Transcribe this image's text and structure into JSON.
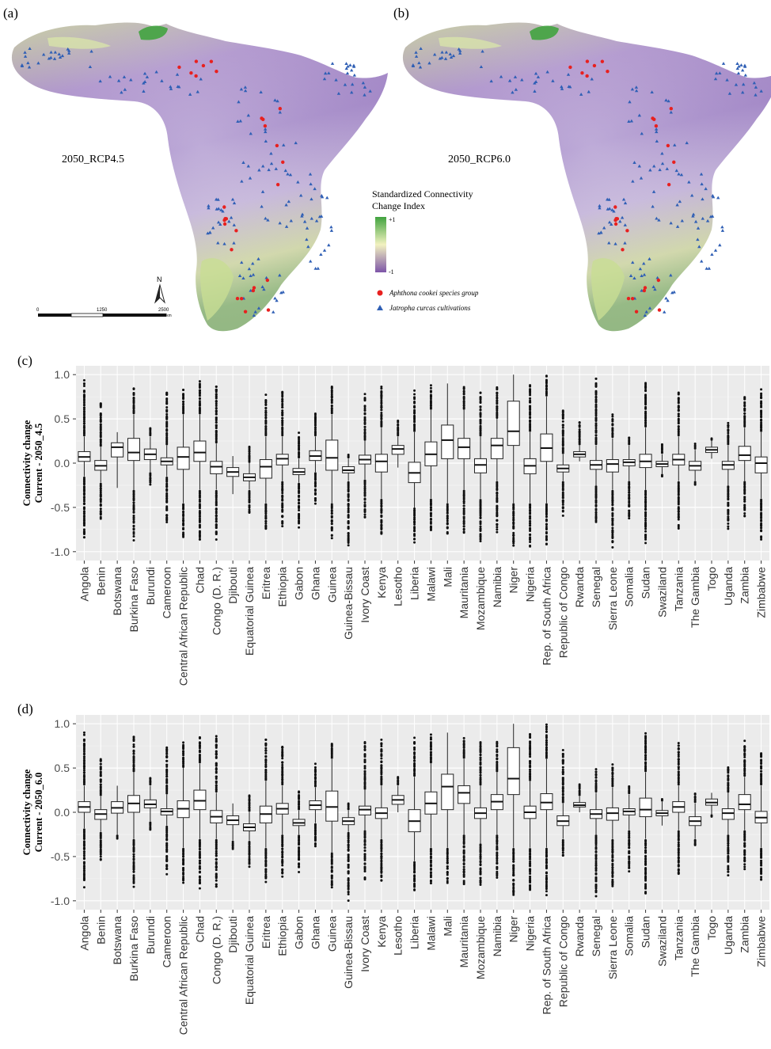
{
  "panels": {
    "a": {
      "tag": "(a)",
      "scenario": "2050_RCP4.5"
    },
    "b": {
      "tag": "(b)",
      "scenario": "2050_RCP6.0"
    },
    "c": {
      "tag": "(c)"
    },
    "d": {
      "tag": "(d)"
    }
  },
  "map_legend": {
    "title_line1": "Standardized Connectivity",
    "title_line2": "Change Index",
    "max_label": "+1",
    "min_label": "-1",
    "color_high": "#41a33f",
    "color_mid": "#f2f2c0",
    "color_low": "#7d55a8",
    "point_species": "Aphthona cookei species group",
    "point_crop": "Jatropha curcas cultivations",
    "point_species_color": "#e8201f",
    "point_crop_color": "#2f5fb5"
  },
  "scalebar": {
    "labels": [
      "0",
      "1250",
      "2500"
    ],
    "unit": "km",
    "north": "N"
  },
  "chart_data": [
    {
      "type": "box",
      "panel": "c",
      "ylabel_line1": "Connectivity change",
      "ylabel_line2": "Current - 2050_4.5",
      "ylim": [
        -1.0,
        1.0
      ],
      "yticks": [
        "1.0",
        "0.5",
        "0.0",
        "-0.5",
        "-1.0"
      ],
      "ytick_values": [
        1.0,
        0.5,
        0.0,
        -0.5,
        -1.0
      ],
      "grid": true,
      "panel_background": "#ebebeb",
      "categories": [
        "Angola",
        "Benin",
        "Botswana",
        "Burkina Faso",
        "Burundi",
        "Cameroon",
        "Central African Republic",
        "Chad",
        "Congo (D. R.)",
        "Djibouti",
        "Equatorial Guinea",
        "Eritrea",
        "Ethiopia",
        "Gabon",
        "Ghana",
        "Guinea",
        "Guinea-Bissau",
        "Ivory Coast",
        "Kenya",
        "Lesotho",
        "Liberia",
        "Malawi",
        "Mali",
        "Mauritania",
        "Mozambique",
        "Namibia",
        "Niger",
        "Nigeria",
        "Rep. of South Africa",
        "Republic of Congo",
        "Rwanda",
        "Senegal",
        "Sierra Leone",
        "Somalia",
        "Sudan",
        "Swaziland",
        "Tanzania",
        "The Gambia",
        "Togo",
        "Uganda",
        "Zambia",
        "Zimbabwe"
      ],
      "boxes": [
        {
          "q1": 0.02,
          "median": 0.07,
          "q3": 0.13,
          "lw": -0.15,
          "uw": 0.3,
          "ymin": -0.9,
          "ymax": 0.95
        },
        {
          "q1": -0.08,
          "median": -0.03,
          "q3": 0.03,
          "lw": -0.22,
          "uw": 0.18,
          "ymin": -0.65,
          "ymax": 0.72
        },
        {
          "q1": 0.07,
          "median": 0.18,
          "q3": 0.23,
          "lw": -0.28,
          "uw": 0.35,
          "ymin": -0.28,
          "ymax": 0.35
        },
        {
          "q1": 0.03,
          "median": 0.12,
          "q3": 0.28,
          "lw": -0.3,
          "uw": 0.55,
          "ymin": -0.88,
          "ymax": 0.88
        },
        {
          "q1": 0.04,
          "median": 0.1,
          "q3": 0.16,
          "lw": -0.1,
          "uw": 0.3,
          "ymin": -0.25,
          "ymax": 0.4
        },
        {
          "q1": -0.02,
          "median": 0.02,
          "q3": 0.06,
          "lw": -0.15,
          "uw": 0.2,
          "ymin": -0.72,
          "ymax": 0.85
        },
        {
          "q1": -0.07,
          "median": 0.07,
          "q3": 0.18,
          "lw": -0.45,
          "uw": 0.55,
          "ymin": -0.88,
          "ymax": 0.85
        },
        {
          "q1": 0.02,
          "median": 0.12,
          "q3": 0.25,
          "lw": -0.3,
          "uw": 0.55,
          "ymin": -0.9,
          "ymax": 0.95
        },
        {
          "q1": -0.12,
          "median": -0.04,
          "q3": 0.02,
          "lw": -0.3,
          "uw": 0.22,
          "ymin": -0.88,
          "ymax": 0.95
        },
        {
          "q1": -0.15,
          "median": -0.1,
          "q3": -0.05,
          "lw": -0.35,
          "uw": 0.08,
          "ymin": -0.35,
          "ymax": 0.08
        },
        {
          "q1": -0.2,
          "median": -0.16,
          "q3": -0.12,
          "lw": -0.3,
          "uw": 0.0,
          "ymin": -0.58,
          "ymax": 0.2
        },
        {
          "q1": -0.17,
          "median": -0.04,
          "q3": 0.04,
          "lw": -0.45,
          "uw": 0.3,
          "ymin": -0.78,
          "ymax": 0.78
        },
        {
          "q1": -0.02,
          "median": 0.05,
          "q3": 0.1,
          "lw": -0.2,
          "uw": 0.3,
          "ymin": -0.75,
          "ymax": 0.85
        },
        {
          "q1": -0.13,
          "median": -0.1,
          "q3": -0.06,
          "lw": -0.22,
          "uw": 0.05,
          "ymin": -0.75,
          "ymax": 0.35
        },
        {
          "q1": 0.03,
          "median": 0.08,
          "q3": 0.14,
          "lw": -0.1,
          "uw": 0.3,
          "ymin": -0.48,
          "ymax": 0.58
        },
        {
          "q1": -0.08,
          "median": 0.06,
          "q3": 0.26,
          "lw": -0.45,
          "uw": 0.55,
          "ymin": -0.85,
          "ymax": 0.9
        },
        {
          "q1": -0.11,
          "median": -0.08,
          "q3": -0.04,
          "lw": -0.2,
          "uw": 0.05,
          "ymin": -1.0,
          "ymax": 0.1
        },
        {
          "q1": -0.01,
          "median": 0.04,
          "q3": 0.09,
          "lw": -0.18,
          "uw": 0.25,
          "ymin": -0.65,
          "ymax": 0.8
        },
        {
          "q1": -0.1,
          "median": 0.02,
          "q3": 0.1,
          "lw": -0.4,
          "uw": 0.4,
          "ymin": -0.85,
          "ymax": 0.9
        },
        {
          "q1": 0.1,
          "median": 0.16,
          "q3": 0.2,
          "lw": -0.05,
          "uw": 0.3,
          "ymin": -0.05,
          "ymax": 0.48
        },
        {
          "q1": -0.22,
          "median": -0.11,
          "q3": 0.01,
          "lw": -0.5,
          "uw": 0.35,
          "ymin": -0.92,
          "ymax": 0.82
        },
        {
          "q1": -0.03,
          "median": 0.1,
          "q3": 0.24,
          "lw": -0.4,
          "uw": 0.6,
          "ymin": -0.8,
          "ymax": 0.88
        },
        {
          "q1": 0.05,
          "median": 0.26,
          "q3": 0.43,
          "lw": -0.45,
          "uw": 0.9,
          "ymin": -0.82,
          "ymax": 0.9
        },
        {
          "q1": 0.05,
          "median": 0.18,
          "q3": 0.28,
          "lw": -0.3,
          "uw": 0.6,
          "ymin": -0.82,
          "ymax": 0.88
        },
        {
          "q1": -0.11,
          "median": -0.02,
          "q3": 0.05,
          "lw": -0.4,
          "uw": 0.3,
          "ymin": -0.92,
          "ymax": 0.82
        },
        {
          "q1": 0.05,
          "median": 0.2,
          "q3": 0.28,
          "lw": -0.2,
          "uw": 0.5,
          "ymin": -0.8,
          "ymax": 0.88
        },
        {
          "q1": 0.2,
          "median": 0.36,
          "q3": 0.7,
          "lw": -0.45,
          "uw": 1.0,
          "ymin": -0.98,
          "ymax": 1.0
        },
        {
          "q1": -0.12,
          "median": -0.03,
          "q3": 0.05,
          "lw": -0.45,
          "uw": 0.35,
          "ymin": -0.95,
          "ymax": 0.92
        },
        {
          "q1": 0.02,
          "median": 0.17,
          "q3": 0.33,
          "lw": -0.45,
          "uw": 0.75,
          "ymin": -0.95,
          "ymax": 1.0
        },
        {
          "q1": -0.1,
          "median": -0.06,
          "q3": -0.02,
          "lw": -0.2,
          "uw": 0.1,
          "ymin": -0.6,
          "ymax": 0.65
        },
        {
          "q1": 0.07,
          "median": 0.1,
          "q3": 0.13,
          "lw": 0.02,
          "uw": 0.2,
          "ymin": 0.02,
          "ymax": 0.48
        },
        {
          "q1": -0.07,
          "median": -0.02,
          "q3": 0.03,
          "lw": -0.25,
          "uw": 0.2,
          "ymin": -0.7,
          "ymax": 1.0
        },
        {
          "q1": -0.1,
          "median": -0.01,
          "q3": 0.04,
          "lw": -0.3,
          "uw": 0.28,
          "ymin": -0.98,
          "ymax": 0.55
        },
        {
          "q1": -0.03,
          "median": 0.01,
          "q3": 0.04,
          "lw": -0.2,
          "uw": 0.2,
          "ymin": -0.65,
          "ymax": 0.3
        },
        {
          "q1": -0.05,
          "median": 0.02,
          "q3": 0.1,
          "lw": -0.3,
          "uw": 0.4,
          "ymin": -0.92,
          "ymax": 0.95
        },
        {
          "q1": -0.04,
          "median": -0.01,
          "q3": 0.02,
          "lw": -0.12,
          "uw": 0.1,
          "ymin": -0.15,
          "ymax": 0.22
        },
        {
          "q1": -0.02,
          "median": 0.04,
          "q3": 0.1,
          "lw": -0.2,
          "uw": 0.3,
          "ymin": -0.75,
          "ymax": 0.85
        },
        {
          "q1": -0.08,
          "median": -0.03,
          "q3": 0.02,
          "lw": -0.2,
          "uw": 0.15,
          "ymin": -0.25,
          "ymax": 0.22
        },
        {
          "q1": 0.12,
          "median": 0.15,
          "q3": 0.18,
          "lw": 0.05,
          "uw": 0.25,
          "ymin": 0.05,
          "ymax": 0.28
        },
        {
          "q1": -0.07,
          "median": -0.02,
          "q3": 0.02,
          "lw": -0.25,
          "uw": 0.2,
          "ymin": -0.75,
          "ymax": 0.48
        },
        {
          "q1": 0.03,
          "median": 0.09,
          "q3": 0.19,
          "lw": -0.2,
          "uw": 0.4,
          "ymin": -0.62,
          "ymax": 0.78
        },
        {
          "q1": -0.11,
          "median": 0.0,
          "q3": 0.07,
          "lw": -0.4,
          "uw": 0.35,
          "ymin": -0.88,
          "ymax": 0.85
        }
      ]
    },
    {
      "type": "box",
      "panel": "d",
      "ylabel_line1": "Connectivity change",
      "ylabel_line2": "Current - 2050_6.0",
      "ylim": [
        -1.0,
        1.0
      ],
      "yticks": [
        "1.0",
        "0.5",
        "0.0",
        "-0.5",
        "-1.0"
      ],
      "ytick_values": [
        1.0,
        0.5,
        0.0,
        -0.5,
        -1.0
      ],
      "grid": true,
      "panel_background": "#ebebeb",
      "categories": [
        "Angola",
        "Benin",
        "Botswana",
        "Burkina Faso",
        "Burundi",
        "Cameroon",
        "Central African Republic",
        "Chad",
        "Congo (D. R.)",
        "Djibouti",
        "Equatorial Guinea",
        "Eritrea",
        "Ethiopia",
        "Gabon",
        "Ghana",
        "Guinea",
        "Guinea-Bissau",
        "Ivory Coast",
        "Kenya",
        "Lesotho",
        "Liberia",
        "Malawi",
        "Mali",
        "Mauritania",
        "Mozambique",
        "Namibia",
        "Niger",
        "Nigeria",
        "Rep. of South Africa",
        "Republic of Congo",
        "Rwanda",
        "Senegal",
        "Sierra Leone",
        "Somalia",
        "Sudan",
        "Swaziland",
        "Tanzania",
        "The Gambia",
        "Togo",
        "Uganda",
        "Zambia",
        "Zimbabwe"
      ],
      "boxes": [
        {
          "q1": 0.0,
          "median": 0.06,
          "q3": 0.12,
          "lw": -0.18,
          "uw": 0.3,
          "ymin": -0.85,
          "ymax": 0.92
        },
        {
          "q1": -0.08,
          "median": -0.02,
          "q3": 0.03,
          "lw": -0.22,
          "uw": 0.18,
          "ymin": -0.55,
          "ymax": 0.65
        },
        {
          "q1": -0.01,
          "median": 0.05,
          "q3": 0.12,
          "lw": -0.25,
          "uw": 0.3,
          "ymin": -0.3,
          "ymax": 0.3
        },
        {
          "q1": 0.0,
          "median": 0.1,
          "q3": 0.19,
          "lw": -0.3,
          "uw": 0.45,
          "ymin": -0.85,
          "ymax": 0.88
        },
        {
          "q1": 0.05,
          "median": 0.09,
          "q3": 0.14,
          "lw": -0.1,
          "uw": 0.3,
          "ymin": -0.2,
          "ymax": 0.4
        },
        {
          "q1": -0.03,
          "median": 0.01,
          "q3": 0.04,
          "lw": -0.15,
          "uw": 0.2,
          "ymin": -0.72,
          "ymax": 0.8
        },
        {
          "q1": -0.06,
          "median": 0.04,
          "q3": 0.13,
          "lw": -0.4,
          "uw": 0.5,
          "ymin": -0.82,
          "ymax": 0.82
        },
        {
          "q1": 0.03,
          "median": 0.13,
          "q3": 0.25,
          "lw": -0.3,
          "uw": 0.55,
          "ymin": -0.88,
          "ymax": 0.88
        },
        {
          "q1": -0.12,
          "median": -0.05,
          "q3": 0.02,
          "lw": -0.3,
          "uw": 0.22,
          "ymin": -0.88,
          "ymax": 0.9
        },
        {
          "q1": -0.14,
          "median": -0.09,
          "q3": -0.04,
          "lw": -0.32,
          "uw": 0.1,
          "ymin": -0.42,
          "ymax": 0.1
        },
        {
          "q1": -0.21,
          "median": -0.17,
          "q3": -0.13,
          "lw": -0.32,
          "uw": 0.0,
          "ymin": -0.62,
          "ymax": 0.22
        },
        {
          "q1": -0.12,
          "median": -0.02,
          "q3": 0.07,
          "lw": -0.4,
          "uw": 0.35,
          "ymin": -0.8,
          "ymax": 0.85
        },
        {
          "q1": -0.02,
          "median": 0.04,
          "q3": 0.1,
          "lw": -0.25,
          "uw": 0.3,
          "ymin": -0.75,
          "ymax": 0.8
        },
        {
          "q1": -0.15,
          "median": -0.12,
          "q3": -0.08,
          "lw": -0.25,
          "uw": 0.02,
          "ymin": -0.7,
          "ymax": 0.25
        },
        {
          "q1": 0.03,
          "median": 0.08,
          "q3": 0.13,
          "lw": -0.12,
          "uw": 0.28,
          "ymin": -0.4,
          "ymax": 0.55
        },
        {
          "q1": -0.1,
          "median": 0.06,
          "q3": 0.24,
          "lw": -0.45,
          "uw": 0.6,
          "ymin": -0.88,
          "ymax": 0.8
        },
        {
          "q1": -0.14,
          "median": -0.1,
          "q3": -0.06,
          "lw": -0.22,
          "uw": 0.02,
          "ymin": -1.0,
          "ymax": 0.1
        },
        {
          "q1": -0.03,
          "median": 0.03,
          "q3": 0.07,
          "lw": -0.2,
          "uw": 0.25,
          "ymin": -0.78,
          "ymax": 0.82
        },
        {
          "q1": -0.07,
          "median": -0.01,
          "q3": 0.05,
          "lw": -0.3,
          "uw": 0.3,
          "ymin": -0.8,
          "ymax": 0.85
        },
        {
          "q1": 0.09,
          "median": 0.14,
          "q3": 0.19,
          "lw": 0.0,
          "uw": 0.3,
          "ymin": 0.0,
          "ymax": 0.4
        },
        {
          "q1": -0.22,
          "median": -0.1,
          "q3": 0.03,
          "lw": -0.55,
          "uw": 0.4,
          "ymin": -0.9,
          "ymax": 0.85
        },
        {
          "q1": -0.02,
          "median": 0.1,
          "q3": 0.23,
          "lw": -0.4,
          "uw": 0.55,
          "ymin": -0.82,
          "ymax": 0.88
        },
        {
          "q1": 0.03,
          "median": 0.29,
          "q3": 0.43,
          "lw": -0.4,
          "uw": 0.9,
          "ymin": -0.82,
          "ymax": 0.9
        },
        {
          "q1": 0.1,
          "median": 0.22,
          "q3": 0.3,
          "lw": -0.25,
          "uw": 0.6,
          "ymin": -0.82,
          "ymax": 0.85
        },
        {
          "q1": -0.07,
          "median": -0.01,
          "q3": 0.05,
          "lw": -0.35,
          "uw": 0.3,
          "ymin": -0.88,
          "ymax": 0.85
        },
        {
          "q1": 0.03,
          "median": 0.12,
          "q3": 0.2,
          "lw": -0.25,
          "uw": 0.45,
          "ymin": -0.75,
          "ymax": 0.82
        },
        {
          "q1": 0.2,
          "median": 0.38,
          "q3": 0.73,
          "lw": -0.4,
          "uw": 1.0,
          "ymin": -0.98,
          "ymax": 1.0
        },
        {
          "q1": -0.07,
          "median": 0.0,
          "q3": 0.07,
          "lw": -0.4,
          "uw": 0.35,
          "ymin": -0.92,
          "ymax": 0.92
        },
        {
          "q1": 0.03,
          "median": 0.11,
          "q3": 0.21,
          "lw": -0.4,
          "uw": 0.6,
          "ymin": -0.95,
          "ymax": 1.0
        },
        {
          "q1": -0.15,
          "median": -0.1,
          "q3": -0.04,
          "lw": -0.3,
          "uw": 0.1,
          "ymin": -0.5,
          "ymax": 0.75
        },
        {
          "q1": 0.06,
          "median": 0.08,
          "q3": 0.11,
          "lw": 0.0,
          "uw": 0.18,
          "ymin": 0.0,
          "ymax": 0.32
        },
        {
          "q1": -0.07,
          "median": -0.02,
          "q3": 0.03,
          "lw": -0.25,
          "uw": 0.22,
          "ymin": -0.98,
          "ymax": 0.5
        },
        {
          "q1": -0.09,
          "median": -0.01,
          "q3": 0.05,
          "lw": -0.3,
          "uw": 0.28,
          "ymin": -0.9,
          "ymax": 0.55
        },
        {
          "q1": -0.03,
          "median": 0.01,
          "q3": 0.04,
          "lw": -0.2,
          "uw": 0.2,
          "ymin": -0.7,
          "ymax": 0.3
        },
        {
          "q1": -0.05,
          "median": 0.03,
          "q3": 0.16,
          "lw": -0.3,
          "uw": 0.45,
          "ymin": -0.95,
          "ymax": 0.92
        },
        {
          "q1": -0.04,
          "median": -0.01,
          "q3": 0.02,
          "lw": -0.15,
          "uw": 0.12,
          "ymin": -0.15,
          "ymax": 0.15
        },
        {
          "q1": 0.0,
          "median": 0.06,
          "q3": 0.12,
          "lw": -0.2,
          "uw": 0.3,
          "ymin": -0.75,
          "ymax": 0.82
        },
        {
          "q1": -0.15,
          "median": -0.1,
          "q3": -0.05,
          "lw": -0.3,
          "uw": 0.1,
          "ymin": -0.38,
          "ymax": 0.22
        },
        {
          "q1": 0.08,
          "median": 0.11,
          "q3": 0.15,
          "lw": -0.02,
          "uw": 0.22,
          "ymin": -0.05,
          "ymax": 0.22
        },
        {
          "q1": -0.08,
          "median": -0.01,
          "q3": 0.04,
          "lw": -0.25,
          "uw": 0.22,
          "ymin": -0.72,
          "ymax": 0.55
        },
        {
          "q1": 0.03,
          "median": 0.09,
          "q3": 0.2,
          "lw": -0.2,
          "uw": 0.4,
          "ymin": -0.65,
          "ymax": 0.82
        },
        {
          "q1": -0.12,
          "median": -0.06,
          "q3": 0.01,
          "lw": -0.4,
          "uw": 0.3,
          "ymin": -0.78,
          "ymax": 0.72
        }
      ]
    }
  ]
}
